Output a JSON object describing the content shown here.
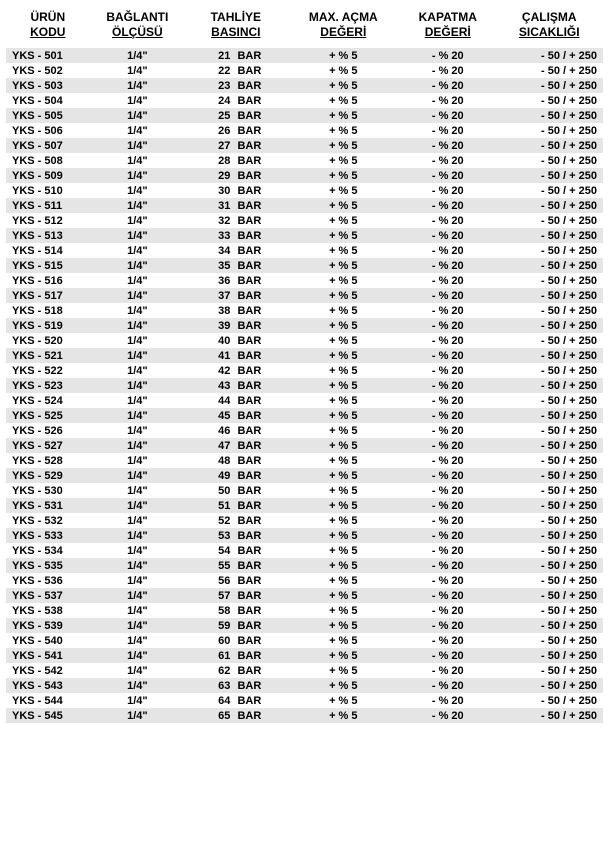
{
  "table": {
    "background_color": "#ffffff",
    "alt_row_color": "#e5e5e5",
    "text_color": "#000000",
    "font_family": "Arial",
    "header_fontsize": 12,
    "cell_fontsize": 11,
    "font_weight": "bold",
    "columns": [
      {
        "line1": "ÜRÜN",
        "line2": "KODU",
        "width_pct": 14,
        "align": "left"
      },
      {
        "line1": "BAĞLANTI",
        "line2": "ÖLÇÜSÜ",
        "width_pct": 16,
        "align": "center"
      },
      {
        "line1": "TAHLİYE",
        "line2": "BASINCI",
        "width_pct": 17,
        "align": "center"
      },
      {
        "line1": "MAX. AÇMA",
        "line2": "DEĞERİ",
        "width_pct": 19,
        "align": "center"
      },
      {
        "line1": "KAPATMA",
        "line2": "DEĞERİ",
        "width_pct": 16,
        "align": "center"
      },
      {
        "line1": "ÇALIŞMA",
        "line2": "SICAKLIĞI",
        "width_pct": 18,
        "align": "right"
      }
    ],
    "fixed_cells": {
      "conn_size": "1/4\"",
      "pressure_unit": "BAR",
      "max_open": "+ % 5",
      "close_val": "- % 20",
      "temp_range": "- 50 / + 250"
    },
    "code_prefix": "YKS - ",
    "code_start": 501,
    "code_end": 545,
    "pressure_start": 21,
    "pressure_end": 65,
    "rows": [
      {
        "code": "YKS - 501",
        "conn": "1/4\"",
        "press_num": "21",
        "press_unit": "BAR",
        "open": "+ % 5",
        "close": "- % 20",
        "temp": "- 50 / + 250"
      },
      {
        "code": "YKS - 502",
        "conn": "1/4\"",
        "press_num": "22",
        "press_unit": "BAR",
        "open": "+ % 5",
        "close": "- % 20",
        "temp": "- 50 / + 250"
      },
      {
        "code": "YKS - 503",
        "conn": "1/4\"",
        "press_num": "23",
        "press_unit": "BAR",
        "open": "+ % 5",
        "close": "- % 20",
        "temp": "- 50 / + 250"
      },
      {
        "code": "YKS - 504",
        "conn": "1/4\"",
        "press_num": "24",
        "press_unit": "BAR",
        "open": "+ % 5",
        "close": "- % 20",
        "temp": "- 50 / + 250"
      },
      {
        "code": "YKS - 505",
        "conn": "1/4\"",
        "press_num": "25",
        "press_unit": "BAR",
        "open": "+ % 5",
        "close": "- % 20",
        "temp": "- 50 / + 250"
      },
      {
        "code": "YKS - 506",
        "conn": "1/4\"",
        "press_num": "26",
        "press_unit": "BAR",
        "open": "+ % 5",
        "close": "- % 20",
        "temp": "- 50 / + 250"
      },
      {
        "code": "YKS - 507",
        "conn": "1/4\"",
        "press_num": "27",
        "press_unit": "BAR",
        "open": "+ % 5",
        "close": "- % 20",
        "temp": "- 50 / + 250"
      },
      {
        "code": "YKS - 508",
        "conn": "1/4\"",
        "press_num": "28",
        "press_unit": "BAR",
        "open": "+ % 5",
        "close": "- % 20",
        "temp": "- 50 / + 250"
      },
      {
        "code": "YKS - 509",
        "conn": "1/4\"",
        "press_num": "29",
        "press_unit": "BAR",
        "open": "+ % 5",
        "close": "- % 20",
        "temp": "- 50 / + 250"
      },
      {
        "code": "YKS - 510",
        "conn": "1/4\"",
        "press_num": "30",
        "press_unit": "BAR",
        "open": "+ % 5",
        "close": "- % 20",
        "temp": "- 50 / + 250"
      },
      {
        "code": "YKS - 511",
        "conn": "1/4\"",
        "press_num": "31",
        "press_unit": "BAR",
        "open": "+ % 5",
        "close": "- % 20",
        "temp": "- 50 / + 250"
      },
      {
        "code": "YKS - 512",
        "conn": "1/4\"",
        "press_num": "32",
        "press_unit": "BAR",
        "open": "+ % 5",
        "close": "- % 20",
        "temp": "- 50 / + 250"
      },
      {
        "code": "YKS - 513",
        "conn": "1/4\"",
        "press_num": "33",
        "press_unit": "BAR",
        "open": "+ % 5",
        "close": "- % 20",
        "temp": "- 50 / + 250"
      },
      {
        "code": "YKS - 514",
        "conn": "1/4\"",
        "press_num": "34",
        "press_unit": "BAR",
        "open": "+ % 5",
        "close": "- % 20",
        "temp": "- 50 / + 250"
      },
      {
        "code": "YKS - 515",
        "conn": "1/4\"",
        "press_num": "35",
        "press_unit": "BAR",
        "open": "+ % 5",
        "close": "- % 20",
        "temp": "- 50 / + 250"
      },
      {
        "code": "YKS - 516",
        "conn": "1/4\"",
        "press_num": "36",
        "press_unit": "BAR",
        "open": "+ % 5",
        "close": "- % 20",
        "temp": "- 50 / + 250"
      },
      {
        "code": "YKS - 517",
        "conn": "1/4\"",
        "press_num": "37",
        "press_unit": "BAR",
        "open": "+ % 5",
        "close": "- % 20",
        "temp": "- 50 / + 250"
      },
      {
        "code": "YKS - 518",
        "conn": "1/4\"",
        "press_num": "38",
        "press_unit": "BAR",
        "open": "+ % 5",
        "close": "- % 20",
        "temp": "- 50 / + 250"
      },
      {
        "code": "YKS - 519",
        "conn": "1/4\"",
        "press_num": "39",
        "press_unit": "BAR",
        "open": "+ % 5",
        "close": "- % 20",
        "temp": "- 50 / + 250"
      },
      {
        "code": "YKS - 520",
        "conn": "1/4\"",
        "press_num": "40",
        "press_unit": "BAR",
        "open": "+ % 5",
        "close": "- % 20",
        "temp": "- 50 / + 250"
      },
      {
        "code": "YKS - 521",
        "conn": "1/4\"",
        "press_num": "41",
        "press_unit": "BAR",
        "open": "+ % 5",
        "close": "- % 20",
        "temp": "- 50 / + 250"
      },
      {
        "code": "YKS - 522",
        "conn": "1/4\"",
        "press_num": "42",
        "press_unit": "BAR",
        "open": "+ % 5",
        "close": "- % 20",
        "temp": "- 50 / + 250"
      },
      {
        "code": "YKS - 523",
        "conn": "1/4\"",
        "press_num": "43",
        "press_unit": "BAR",
        "open": "+ % 5",
        "close": "- % 20",
        "temp": "- 50 / + 250"
      },
      {
        "code": "YKS - 524",
        "conn": "1/4\"",
        "press_num": "44",
        "press_unit": "BAR",
        "open": "+ % 5",
        "close": "- % 20",
        "temp": "- 50 / + 250"
      },
      {
        "code": "YKS - 525",
        "conn": "1/4\"",
        "press_num": "45",
        "press_unit": "BAR",
        "open": "+ % 5",
        "close": "- % 20",
        "temp": "- 50 / + 250"
      },
      {
        "code": "YKS - 526",
        "conn": "1/4\"",
        "press_num": "46",
        "press_unit": "BAR",
        "open": "+ % 5",
        "close": "- % 20",
        "temp": "- 50 / + 250"
      },
      {
        "code": "YKS - 527",
        "conn": "1/4\"",
        "press_num": "47",
        "press_unit": "BAR",
        "open": "+ % 5",
        "close": "- % 20",
        "temp": "- 50 / + 250"
      },
      {
        "code": "YKS - 528",
        "conn": "1/4\"",
        "press_num": "48",
        "press_unit": "BAR",
        "open": "+ % 5",
        "close": "- % 20",
        "temp": "- 50 / + 250"
      },
      {
        "code": "YKS - 529",
        "conn": "1/4\"",
        "press_num": "49",
        "press_unit": "BAR",
        "open": "+ % 5",
        "close": "- % 20",
        "temp": "- 50 / + 250"
      },
      {
        "code": "YKS - 530",
        "conn": "1/4\"",
        "press_num": "50",
        "press_unit": "BAR",
        "open": "+ % 5",
        "close": "- % 20",
        "temp": "- 50 / + 250"
      },
      {
        "code": "YKS - 531",
        "conn": "1/4\"",
        "press_num": "51",
        "press_unit": "BAR",
        "open": "+ % 5",
        "close": "- % 20",
        "temp": "- 50 / + 250"
      },
      {
        "code": "YKS - 532",
        "conn": "1/4\"",
        "press_num": "52",
        "press_unit": "BAR",
        "open": "+ % 5",
        "close": "- % 20",
        "temp": "- 50 / + 250"
      },
      {
        "code": "YKS - 533",
        "conn": "1/4\"",
        "press_num": "53",
        "press_unit": "BAR",
        "open": "+ % 5",
        "close": "- % 20",
        "temp": "- 50 / + 250"
      },
      {
        "code": "YKS - 534",
        "conn": "1/4\"",
        "press_num": "54",
        "press_unit": "BAR",
        "open": "+ % 5",
        "close": "- % 20",
        "temp": "- 50 / + 250"
      },
      {
        "code": "YKS - 535",
        "conn": "1/4\"",
        "press_num": "55",
        "press_unit": "BAR",
        "open": "+ % 5",
        "close": "- % 20",
        "temp": "- 50 / + 250"
      },
      {
        "code": "YKS - 536",
        "conn": "1/4\"",
        "press_num": "56",
        "press_unit": "BAR",
        "open": "+ % 5",
        "close": "- % 20",
        "temp": "- 50 / + 250"
      },
      {
        "code": "YKS - 537",
        "conn": "1/4\"",
        "press_num": "57",
        "press_unit": "BAR",
        "open": "+ % 5",
        "close": "- % 20",
        "temp": "- 50 / + 250"
      },
      {
        "code": "YKS - 538",
        "conn": "1/4\"",
        "press_num": "58",
        "press_unit": "BAR",
        "open": "+ % 5",
        "close": "- % 20",
        "temp": "- 50 / + 250"
      },
      {
        "code": "YKS - 539",
        "conn": "1/4\"",
        "press_num": "59",
        "press_unit": "BAR",
        "open": "+ % 5",
        "close": "- % 20",
        "temp": "- 50 / + 250"
      },
      {
        "code": "YKS - 540",
        "conn": "1/4\"",
        "press_num": "60",
        "press_unit": "BAR",
        "open": "+ % 5",
        "close": "- % 20",
        "temp": "- 50 / + 250"
      },
      {
        "code": "YKS - 541",
        "conn": "1/4\"",
        "press_num": "61",
        "press_unit": "BAR",
        "open": "+ % 5",
        "close": "- % 20",
        "temp": "- 50 / + 250"
      },
      {
        "code": "YKS - 542",
        "conn": "1/4\"",
        "press_num": "62",
        "press_unit": "BAR",
        "open": "+ % 5",
        "close": "- % 20",
        "temp": "- 50 / + 250"
      },
      {
        "code": "YKS - 543",
        "conn": "1/4\"",
        "press_num": "63",
        "press_unit": "BAR",
        "open": "+ % 5",
        "close": "- % 20",
        "temp": "- 50 / + 250"
      },
      {
        "code": "YKS - 544",
        "conn": "1/4\"",
        "press_num": "64",
        "press_unit": "BAR",
        "open": "+ % 5",
        "close": "- % 20",
        "temp": "- 50 / + 250"
      },
      {
        "code": "YKS - 545",
        "conn": "1/4\"",
        "press_num": "65",
        "press_unit": "BAR",
        "open": "+ % 5",
        "close": "- % 20",
        "temp": "- 50 / + 250"
      }
    ]
  }
}
